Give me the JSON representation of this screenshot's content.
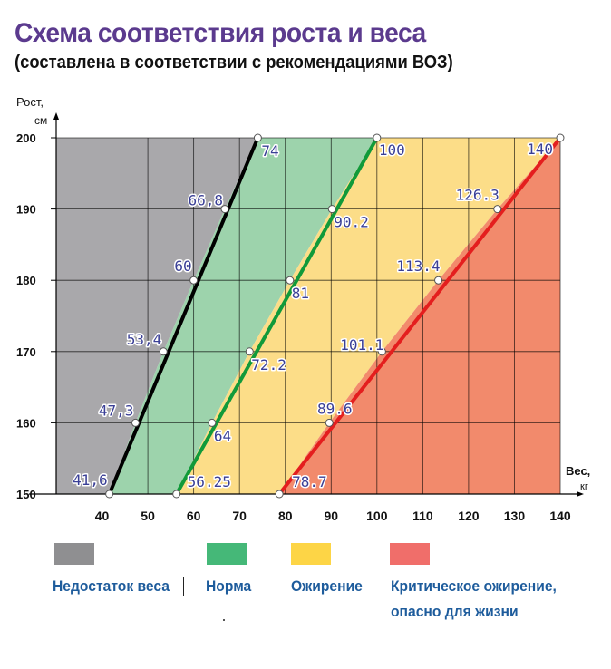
{
  "header": {
    "title": "Схема соответствия роста и веса",
    "subtitle": "(составлена в соответствии с рекомендациями ВОЗ)"
  },
  "legend": [
    {
      "label": "Недостаток веса",
      "color": "#8f8f91"
    },
    {
      "label": "Норма",
      "color": "#45b878"
    },
    {
      "label": "Ожирение",
      "color": "#fdd546"
    },
    {
      "label": "Критическое ожирение,",
      "label2": "опасно для жизни",
      "color": "#f06e6a"
    }
  ],
  "chart_data": {
    "type": "line",
    "ylabel": "Рост,",
    "yunit": "см",
    "xlabel": "Вес,",
    "xunit": "кг",
    "xlim": [
      30,
      140
    ],
    "ylim": [
      150,
      200
    ],
    "xticks": [
      40,
      50,
      60,
      70,
      80,
      90,
      100,
      110,
      120,
      130,
      140
    ],
    "yticks": [
      150,
      160,
      170,
      180,
      190,
      200
    ],
    "grid": true,
    "zones": [
      {
        "name": "Недостаток веса",
        "color": "#a9a8ab"
      },
      {
        "name": "Норма",
        "color": "#9dd3ac"
      },
      {
        "name": "Ожирение",
        "color": "#fcdd88"
      },
      {
        "name": "Критическое ожирение",
        "color": "#f28a6c"
      }
    ],
    "series": [
      {
        "color": "#000000",
        "points": [
          {
            "x": 41.6,
            "y": 150,
            "label": "41,6"
          },
          {
            "x": 47.3,
            "y": 160,
            "label": "47,3"
          },
          {
            "x": 53.4,
            "y": 170,
            "label": "53,4"
          },
          {
            "x": 60,
            "y": 180,
            "label": "60"
          },
          {
            "x": 66.8,
            "y": 190,
            "label": "66,8"
          },
          {
            "x": 74,
            "y": 200,
            "label": "74"
          }
        ]
      },
      {
        "color": "#119a3a",
        "points": [
          {
            "x": 56.25,
            "y": 150,
            "label": "56.25"
          },
          {
            "x": 64,
            "y": 160,
            "label": "64"
          },
          {
            "x": 72.2,
            "y": 170,
            "label": "72.2"
          },
          {
            "x": 81,
            "y": 180,
            "label": "81"
          },
          {
            "x": 90.2,
            "y": 190,
            "label": "90.2"
          },
          {
            "x": 100,
            "y": 200,
            "label": "100"
          }
        ]
      },
      {
        "color": "#e41e1e",
        "points": [
          {
            "x": 78.7,
            "y": 150,
            "label": "78.7"
          },
          {
            "x": 89.6,
            "y": 160,
            "label": "89.6"
          },
          {
            "x": 101.1,
            "y": 170,
            "label": "101.1"
          },
          {
            "x": 113.4,
            "y": 180,
            "label": "113.4"
          },
          {
            "x": 126.3,
            "y": 190,
            "label": "126.3"
          },
          {
            "x": 140,
            "y": 200,
            "label": "140"
          }
        ]
      }
    ]
  }
}
